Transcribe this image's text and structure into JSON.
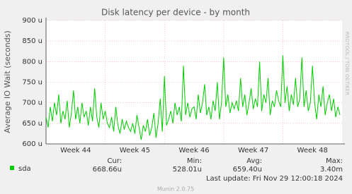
{
  "chart_data": {
    "type": "line",
    "title": "Disk latency per device - by month",
    "y_label": "Average IO Wait (seconds)",
    "watermark": "RRDTOOL / TOBI OETIKER",
    "ylim": [
      600,
      900
    ],
    "yticks": [
      {
        "value": 600,
        "label": "600 u"
      },
      {
        "value": 650,
        "label": "650 u"
      },
      {
        "value": 700,
        "label": "700 u"
      },
      {
        "value": 750,
        "label": "750 u"
      },
      {
        "value": 800,
        "label": "800 u"
      },
      {
        "value": 850,
        "label": "850 u"
      },
      {
        "value": 900,
        "label": "900 u"
      }
    ],
    "xlim": [
      0,
      35
    ],
    "xticks": [
      {
        "value": 3.5,
        "label": "Week 44"
      },
      {
        "value": 10.5,
        "label": "Week 45"
      },
      {
        "value": 17.5,
        "label": "Week 46"
      },
      {
        "value": 24.5,
        "label": "Week 47"
      },
      {
        "value": 31.5,
        "label": "Week 48"
      }
    ],
    "x_grid_lines": [
      7,
      14,
      21,
      28
    ],
    "grid": true,
    "x": [
      0,
      0.25,
      0.5,
      0.75,
      1,
      1.25,
      1.5,
      1.75,
      2,
      2.25,
      2.5,
      2.75,
      3,
      3.25,
      3.5,
      3.75,
      4,
      4.25,
      4.5,
      4.75,
      5,
      5.25,
      5.5,
      5.75,
      6,
      6.25,
      6.5,
      6.75,
      7,
      7.25,
      7.5,
      7.75,
      8,
      8.25,
      8.5,
      8.75,
      9,
      9.25,
      9.5,
      9.75,
      10,
      10.25,
      10.5,
      10.75,
      11,
      11.25,
      11.5,
      11.75,
      12,
      12.25,
      12.5,
      12.75,
      13,
      13.25,
      13.5,
      13.75,
      14,
      14.25,
      14.5,
      14.75,
      15,
      15.25,
      15.5,
      15.75,
      16,
      16.25,
      16.5,
      16.75,
      17,
      17.25,
      17.5,
      17.75,
      18,
      18.25,
      18.5,
      18.75,
      19,
      19.25,
      19.5,
      19.75,
      20,
      20.25,
      20.5,
      20.75,
      21,
      21.25,
      21.5,
      21.75,
      22,
      22.25,
      22.5,
      22.75,
      23,
      23.25,
      23.5,
      23.75,
      24,
      24.25,
      24.5,
      24.75,
      25,
      25.25,
      25.5,
      25.75,
      26,
      26.25,
      26.5,
      26.75,
      27,
      27.25,
      27.5,
      27.75,
      28,
      28.25,
      28.5,
      28.75,
      29,
      29.25,
      29.5,
      29.75,
      30,
      30.25,
      30.5,
      30.75,
      31,
      31.25,
      31.5,
      31.75,
      32,
      32.25,
      32.5,
      32.75,
      33,
      33.25,
      33.5,
      33.75,
      34,
      34.25,
      34.5,
      34.75
    ],
    "series": [
      {
        "name": "sda",
        "color": "#00cc00",
        "values": [
          665,
          640,
          690,
          655,
          700,
          670,
          720,
          650,
          680,
          660,
          705,
          640,
          675,
          730,
          660,
          690,
          650,
          700,
          665,
          680,
          645,
          690,
          655,
          735,
          665,
          640,
          700,
          660,
          680,
          650,
          640,
          665,
          630,
          690,
          645,
          625,
          660,
          635,
          655,
          640,
          630,
          650,
          625,
          670,
          640,
          610,
          645,
          630,
          660,
          620,
          640,
          675,
          615,
          650,
          710,
          630,
          765,
          645,
          660,
          680,
          650,
          700,
          670,
          690,
          655,
          790,
          670,
          700,
          665,
          685,
          690,
          660,
          720,
          675,
          700,
          745,
          670,
          690,
          660,
          705,
          680,
          750,
          660,
          700,
          810,
          690,
          720,
          675,
          700,
          685,
          705,
          680,
          760,
          690,
          720,
          670,
          700,
          735,
          685,
          710,
          690,
          800,
          680,
          720,
          700,
          760,
          670,
          705,
          690,
          730,
          705,
          690,
          815,
          700,
          740,
          680,
          720,
          695,
          760,
          690,
          710,
          810,
          690,
          730,
          680,
          700,
          790,
          700,
          660,
          720,
          690,
          740,
          670,
          700,
          720,
          680,
          710,
          665,
          690,
          670
        ]
      }
    ],
    "stats": {
      "labels": [
        "Cur:",
        "Min:",
        "Avg:",
        "Max:"
      ],
      "values": [
        "668.66u",
        "528.01u",
        "659.40u",
        "3.40m"
      ]
    },
    "last_update": "Last update: Fri Nov 29 12:00:18 2024",
    "footer": "Munin 2.0.75"
  }
}
